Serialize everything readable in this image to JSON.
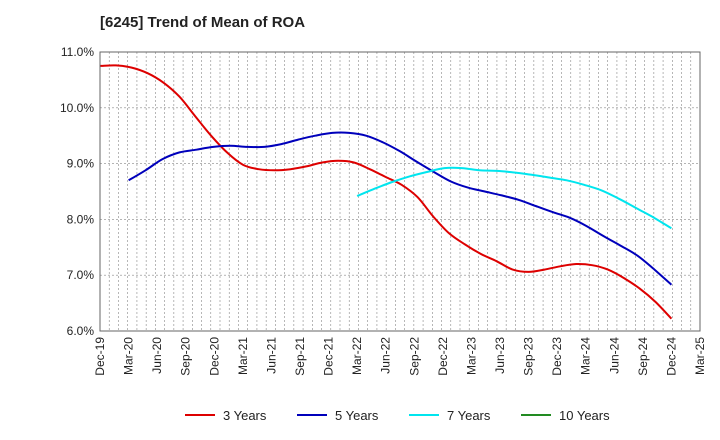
{
  "chart_data": {
    "type": "line",
    "title": "[6245]  Trend of Mean of ROA",
    "xlabel": "",
    "ylabel": "",
    "ylim": [
      6.0,
      11.0
    ],
    "y_ticks": [
      "6.0%",
      "7.0%",
      "8.0%",
      "9.0%",
      "10.0%",
      "11.0%"
    ],
    "x_ticks": [
      "Dec-19",
      "Mar-20",
      "Jun-20",
      "Sep-20",
      "Dec-20",
      "Mar-21",
      "Jun-21",
      "Sep-21",
      "Dec-21",
      "Mar-22",
      "Jun-22",
      "Sep-22",
      "Dec-22",
      "Mar-23",
      "Jun-23",
      "Sep-23",
      "Dec-23",
      "Mar-24",
      "Jun-24",
      "Sep-24",
      "Dec-24",
      "Mar-25"
    ],
    "grid": true,
    "legend_position": "bottom",
    "series": [
      {
        "name": "3 Years",
        "color": "#dd0000",
        "start_index": 0,
        "values": [
          10.75,
          10.76,
          10.72,
          10.62,
          10.45,
          10.2,
          9.85,
          9.5,
          9.2,
          8.98,
          8.9,
          8.88,
          8.9,
          8.95,
          9.02,
          9.05,
          9.02,
          8.9,
          8.76,
          8.62,
          8.4,
          8.05,
          7.75,
          7.55,
          7.38,
          7.25,
          7.1,
          7.06,
          7.1,
          7.16,
          7.2,
          7.18,
          7.1,
          6.95,
          6.76,
          6.52,
          6.22
        ]
      },
      {
        "name": "5 Years",
        "color": "#0000bb",
        "start_index": 1,
        "values": [
          8.7,
          8.88,
          9.08,
          9.2,
          9.25,
          9.3,
          9.32,
          9.3,
          9.3,
          9.35,
          9.43,
          9.5,
          9.55,
          9.55,
          9.5,
          9.38,
          9.22,
          9.03,
          8.85,
          8.68,
          8.57,
          8.5,
          8.43,
          8.35,
          8.24,
          8.13,
          8.03,
          7.88,
          7.7,
          7.53,
          7.35,
          7.1,
          6.83
        ]
      },
      {
        "name": "7 Years",
        "color": "#00e5ee",
        "start_index": 9,
        "values": [
          8.42,
          8.55,
          8.67,
          8.77,
          8.85,
          8.92,
          8.92,
          8.88,
          8.87,
          8.84,
          8.8,
          8.75,
          8.7,
          8.62,
          8.52,
          8.37,
          8.2,
          8.03,
          7.84
        ]
      },
      {
        "name": "10 Years",
        "color": "#228b22",
        "start_index": 0,
        "values": []
      }
    ]
  }
}
